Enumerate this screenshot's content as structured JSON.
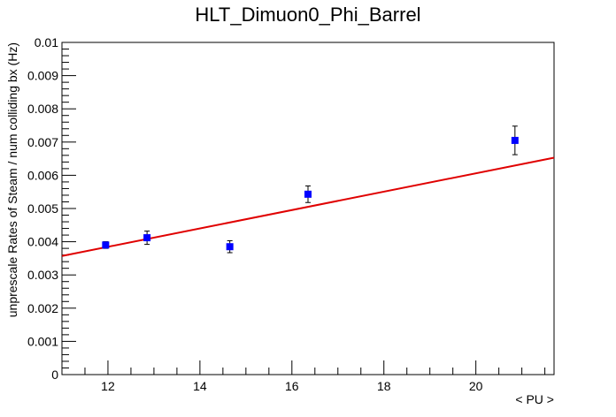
{
  "chart_data": {
    "type": "scatter",
    "title": "HLT_Dimuon0_Phi_Barrel",
    "xlabel": "< PU >",
    "ylabel": "unprescale Rates of Steam / num colliding bx (Hz)",
    "xlim": [
      11.0,
      21.7
    ],
    "ylim": [
      0,
      0.01
    ],
    "x_ticks": [
      12,
      14,
      16,
      18,
      20
    ],
    "x_tick_labels": [
      "12",
      "14",
      "16",
      "18",
      "20"
    ],
    "y_ticks": [
      0,
      0.001,
      0.002,
      0.003,
      0.004,
      0.005,
      0.006,
      0.007,
      0.008,
      0.009,
      0.01
    ],
    "y_tick_labels": [
      "0",
      "0.001",
      "0.002",
      "0.003",
      "0.004",
      "0.005",
      "0.006",
      "0.007",
      "0.008",
      "0.009",
      "0.01"
    ],
    "grid": false,
    "points": [
      {
        "x": 11.95,
        "y": 0.0039,
        "err": 0.0001
      },
      {
        "x": 12.85,
        "y": 0.00412,
        "err": 0.0002
      },
      {
        "x": 14.65,
        "y": 0.00385,
        "err": 0.00018
      },
      {
        "x": 16.35,
        "y": 0.00543,
        "err": 0.00025
      },
      {
        "x": 20.85,
        "y": 0.00705,
        "err": 0.00043
      }
    ],
    "fit": {
      "x0": 11.0,
      "y0": 0.00357,
      "x1": 21.7,
      "y1": 0.00653
    },
    "colors": {
      "marker": "#0000ff",
      "fit": "#e00000",
      "axis": "#000000"
    }
  }
}
